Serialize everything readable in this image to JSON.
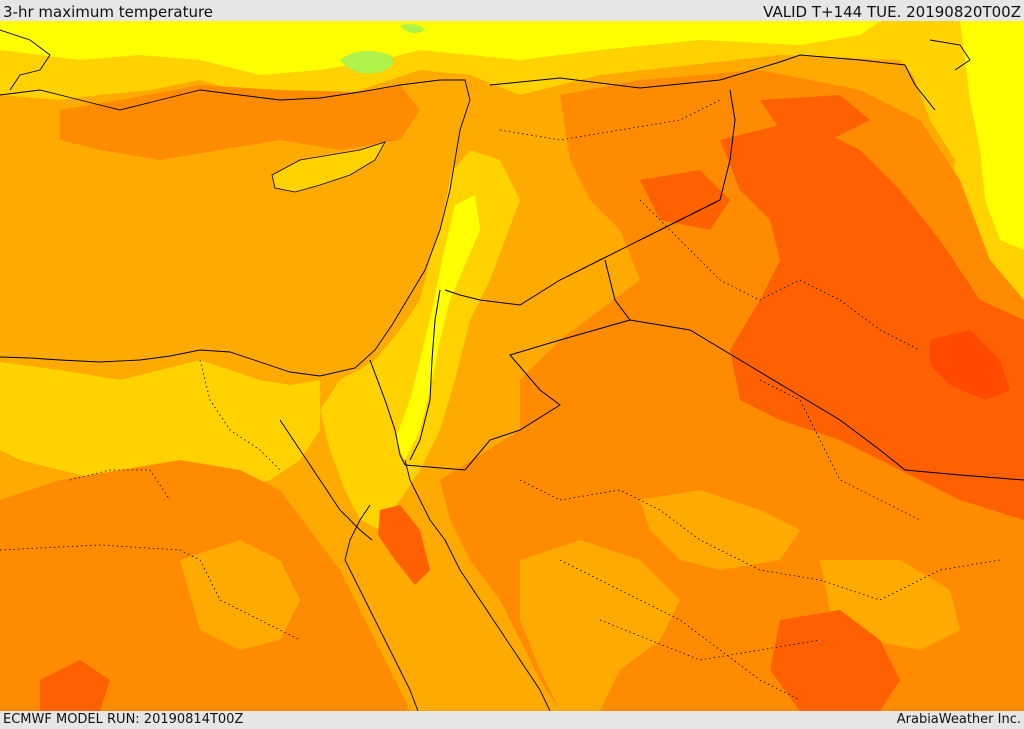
{
  "header": {
    "title": "3-hr maximum temperature",
    "valid": "VALID T+144 TUE. 20190820T00Z"
  },
  "footer": {
    "model_run": "ECMWF MODEL RUN: 20190814T00Z",
    "credit": "ArabiaWeather Inc."
  },
  "colors": {
    "yellow": "#ffff00",
    "light_orange": "#ffd200",
    "amber": "#ffaa00",
    "orange": "#ff8c00",
    "dark_orange": "#ff6000",
    "red_orange": "#ff4a00",
    "green": "#aef24a",
    "border": "#000000"
  }
}
